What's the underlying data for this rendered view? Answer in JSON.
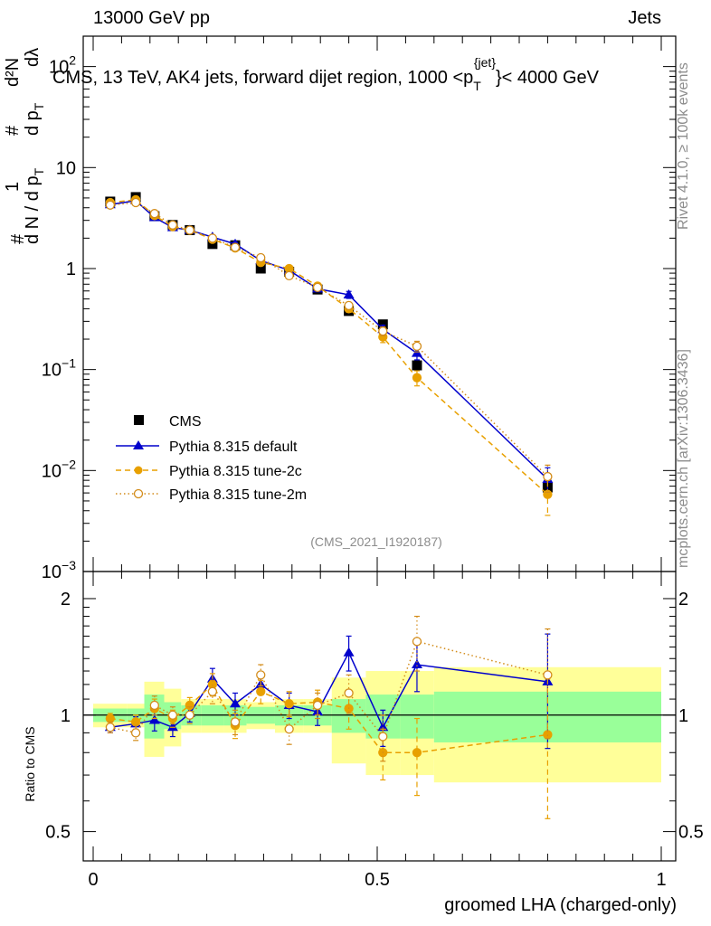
{
  "header": {
    "left": "13000 GeV pp",
    "right": "Jets"
  },
  "colors": {
    "cms": "#000000",
    "default": "#0000cc",
    "tune2c": "#e8a000",
    "tune2m": "#d38c1a",
    "band_inner": "#99ff99",
    "band_outer": "#ffff99",
    "side_text": "#8c8c8c"
  },
  "side_labels": {
    "rivet": "Rivet 4.1.0, ≥ 100k events",
    "mcplots": "mcplots.cern.ch [arXiv:1306.3436]"
  },
  "chart_data": [
    {
      "type": "line",
      "panel": "main",
      "title": "CMS, 13 TeV, AK4 jets, forward dijet region, 1000 <p",
      "title_sub": "T",
      "title_sup": "{jet}",
      "title_tail": "}< 4000 GeV",
      "ylabel_parts": {
        "hash": "#",
        "one": "1",
        "dN": "d N / d p",
        "T": "T",
        "num": "d²N",
        "den": "d p",
        "dl": "dλ"
      },
      "yscale": "log",
      "ylim": [
        0.001,
        200
      ],
      "xlim": [
        -0.02,
        1.0
      ],
      "yticks": [
        {
          "value": 100,
          "base": "10",
          "exp": "2"
        },
        {
          "value": 10,
          "base": "10",
          "exp": ""
        },
        {
          "value": 1,
          "base": "1",
          "exp": ""
        },
        {
          "value": 0.1,
          "base": "10",
          "exp": "−1"
        },
        {
          "value": 0.01,
          "base": "10",
          "exp": "−2"
        },
        {
          "value": 0.001,
          "base": "10",
          "exp": "−3"
        }
      ],
      "watermark": "(CMS_2021_I1920187)",
      "x": [
        0.03,
        0.075,
        0.108,
        0.14,
        0.17,
        0.21,
        0.25,
        0.295,
        0.345,
        0.395,
        0.45,
        0.51,
        0.57,
        0.8
      ],
      "bin_edges": [
        0.0,
        0.06,
        0.09,
        0.125,
        0.155,
        0.19,
        0.23,
        0.27,
        0.32,
        0.37,
        0.42,
        0.48,
        0.54,
        0.6,
        1.0
      ],
      "legend": {
        "position": "lower-left",
        "entries": [
          "CMS",
          "Pythia 8.315 default",
          "Pythia 8.315 tune-2c",
          "Pythia 8.315 tune-2m"
        ]
      },
      "series": [
        {
          "name": "CMS",
          "values": [
            4.6,
            5.1,
            3.3,
            2.7,
            2.4,
            1.75,
            1.7,
            1.0,
            0.93,
            0.62,
            0.38,
            0.28,
            0.11,
            0.0068
          ]
        },
        {
          "name": "Pythia 8.315 default",
          "values": [
            4.3,
            4.7,
            3.2,
            2.55,
            2.4,
            2.05,
            1.75,
            1.2,
            0.96,
            0.63,
            0.55,
            0.25,
            0.145,
            0.0082
          ],
          "rel_err": [
            0.02,
            0.02,
            0.03,
            0.03,
            0.03,
            0.04,
            0.04,
            0.05,
            0.05,
            0.06,
            0.08,
            0.1,
            0.14,
            0.3
          ]
        },
        {
          "name": "Pythia 8.315 tune-2c",
          "values": [
            4.5,
            4.8,
            3.35,
            2.6,
            2.4,
            1.95,
            1.6,
            1.15,
            1.0,
            0.67,
            0.4,
            0.21,
            0.083,
            0.0058
          ],
          "rel_err": [
            0.02,
            0.02,
            0.03,
            0.03,
            0.03,
            0.04,
            0.04,
            0.05,
            0.05,
            0.06,
            0.08,
            0.12,
            0.17,
            0.38
          ]
        },
        {
          "name": "Pythia 8.315 tune-2m",
          "values": [
            4.25,
            4.5,
            3.5,
            2.7,
            2.4,
            2.0,
            1.62,
            1.28,
            0.85,
            0.65,
            0.43,
            0.24,
            0.17,
            0.0087
          ],
          "rel_err": [
            0.02,
            0.02,
            0.03,
            0.03,
            0.03,
            0.04,
            0.04,
            0.05,
            0.05,
            0.06,
            0.08,
            0.1,
            0.12,
            0.3
          ]
        }
      ]
    },
    {
      "type": "line",
      "panel": "ratio",
      "ylabel": "Ratio to CMS",
      "xlabel": "groomed LHA (charged-only)",
      "ylim": [
        0.42,
        2.35
      ],
      "yscale": "log",
      "yticks": [
        0.5,
        1,
        2
      ],
      "yticklabels": [
        "0.5",
        "1",
        "2"
      ],
      "xticks": [
        0,
        0.5,
        1
      ],
      "xticklabels": [
        "0",
        "0.5",
        "1"
      ],
      "x": [
        0.03,
        0.075,
        0.108,
        0.14,
        0.17,
        0.21,
        0.25,
        0.295,
        0.345,
        0.395,
        0.45,
        0.51,
        0.57,
        0.8
      ],
      "bin_edges": [
        0.0,
        0.06,
        0.09,
        0.125,
        0.155,
        0.19,
        0.23,
        0.27,
        0.32,
        0.37,
        0.42,
        0.48,
        0.54,
        0.6,
        1.0
      ],
      "band_inner": [
        0.04,
        0.04,
        0.13,
        0.08,
        0.06,
        0.06,
        0.06,
        0.05,
        0.06,
        0.06,
        0.1,
        0.13,
        0.13,
        0.15,
        0.15
      ],
      "band_outer": [
        0.07,
        0.07,
        0.22,
        0.17,
        0.1,
        0.1,
        0.1,
        0.08,
        0.1,
        0.1,
        0.25,
        0.3,
        0.3,
        0.33,
        0.33
      ],
      "series": [
        {
          "name": "Pythia 8.315 default",
          "values": [
            0.93,
            0.95,
            0.97,
            0.93,
            1.01,
            1.24,
            1.07,
            1.2,
            1.06,
            1.02,
            1.45,
            0.93,
            1.35,
            1.22
          ],
          "errors": [
            0.03,
            0.04,
            0.06,
            0.05,
            0.05,
            0.08,
            0.07,
            0.07,
            0.08,
            0.08,
            0.15,
            0.1,
            0.2,
            0.4
          ]
        },
        {
          "name": "Pythia 8.315 tune-2c",
          "values": [
            0.98,
            0.96,
            1.04,
            0.98,
            1.06,
            1.2,
            0.94,
            1.15,
            1.07,
            1.08,
            1.04,
            0.8,
            0.8,
            0.89
          ],
          "errors": [
            0.03,
            0.04,
            0.06,
            0.05,
            0.05,
            0.08,
            0.07,
            0.08,
            0.08,
            0.08,
            0.12,
            0.12,
            0.18,
            0.35
          ]
        },
        {
          "name": "Pythia 8.315 tune-2m",
          "values": [
            0.93,
            0.9,
            1.06,
            1.0,
            1.0,
            1.15,
            0.96,
            1.27,
            0.92,
            1.06,
            1.14,
            0.88,
            1.55,
            1.27
          ],
          "errors": [
            0.03,
            0.04,
            0.06,
            0.05,
            0.05,
            0.08,
            0.07,
            0.08,
            0.08,
            0.08,
            0.13,
            0.12,
            0.25,
            0.4
          ]
        }
      ]
    }
  ]
}
